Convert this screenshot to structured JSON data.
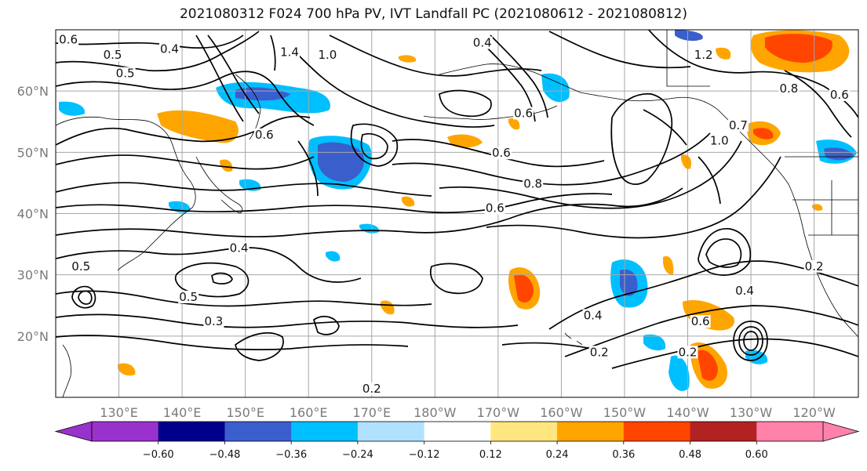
{
  "title": "2021080312 F024 700 hPa PV, IVT Landfall PC (2021080612 - 2021080812)",
  "lat_labels": [
    "60°N",
    "50°N",
    "40°N",
    "30°N",
    "20°N"
  ],
  "lon_labels": [
    "130°E",
    "140°E",
    "150°E",
    "160°E",
    "170°E",
    "180°W",
    "170°W",
    "160°W",
    "150°W",
    "140°W",
    "130°W",
    "120°W"
  ],
  "colorbar": {
    "ticks": [
      "−0.60",
      "−0.48",
      "−0.36",
      "−0.24",
      "−0.12",
      "0.12",
      "0.24",
      "0.36",
      "0.48",
      "0.60"
    ],
    "colors": [
      "#9932CC",
      "#00008B",
      "#3A5FCD",
      "#00BFFF",
      "#B0E2FF",
      "#FFFFFF",
      "#FFE680",
      "#FFA500",
      "#FF4500",
      "#B22222",
      "#FF82AB"
    ]
  },
  "contour_labels": [
    {
      "text": "0.6",
      "lon": 122,
      "lat": 68
    },
    {
      "text": "0.5",
      "lon": 129,
      "lat": 65.5
    },
    {
      "text": "0.4",
      "lon": 138,
      "lat": 66.5
    },
    {
      "text": "0.5",
      "lon": 131,
      "lat": 62.5
    },
    {
      "text": "1.4",
      "lon": 157,
      "lat": 66
    },
    {
      "text": "1.0",
      "lon": 163,
      "lat": 65.5
    },
    {
      "text": "0.4",
      "lon": -172.5,
      "lat": 67.5
    },
    {
      "text": "1.2",
      "lon": -137.5,
      "lat": 65.5
    },
    {
      "text": "0.6",
      "lon": -166,
      "lat": 56
    },
    {
      "text": "0.6",
      "lon": -169.5,
      "lat": 49.5
    },
    {
      "text": "0.6",
      "lon": 153,
      "lat": 52.5
    },
    {
      "text": "0.8",
      "lon": -164.5,
      "lat": 44.5
    },
    {
      "text": "0.6",
      "lon": -170.5,
      "lat": 40.5
    },
    {
      "text": "0.4",
      "lon": 149,
      "lat": 34
    },
    {
      "text": "0.5",
      "lon": 124,
      "lat": 31
    },
    {
      "text": "0.5",
      "lon": 141,
      "lat": 26
    },
    {
      "text": "0.3",
      "lon": 145,
      "lat": 22
    },
    {
      "text": "0.2",
      "lon": 170,
      "lat": 11
    },
    {
      "text": "0.4",
      "lon": -155,
      "lat": 23
    },
    {
      "text": "0.2",
      "lon": -154,
      "lat": 17
    },
    {
      "text": "0.2",
      "lon": -140,
      "lat": 17
    },
    {
      "text": "0.6",
      "lon": -138,
      "lat": 22
    },
    {
      "text": "0.4",
      "lon": -131,
      "lat": 27
    },
    {
      "text": "0.2",
      "lon": -120,
      "lat": 31
    },
    {
      "text": "1.0",
      "lon": -135,
      "lat": 51.5
    },
    {
      "text": "0.7",
      "lon": -132,
      "lat": 54
    },
    {
      "text": "0.8",
      "lon": -124,
      "lat": 60
    },
    {
      "text": "0.6",
      "lon": -116,
      "lat": 59
    }
  ]
}
